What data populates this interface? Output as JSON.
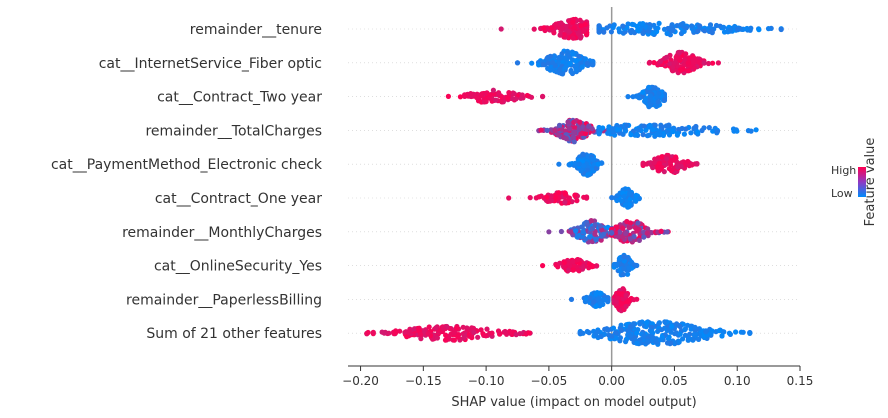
{
  "chart_data": {
    "type": "scatter",
    "subtype": "shap-beeswarm",
    "xlabel": "SHAP value (impact on model output)",
    "xlim": [
      -0.21,
      0.15
    ],
    "xticks": [
      -0.2,
      -0.15,
      -0.1,
      -0.05,
      0.0,
      0.05,
      0.1,
      0.15
    ],
    "xtick_labels": [
      "−0.20",
      "−0.15",
      "−0.10",
      "−0.05",
      "0.00",
      "0.05",
      "0.10",
      "0.15"
    ],
    "colorbar": {
      "label": "Feature value",
      "high": "High",
      "low": "Low",
      "high_color": "#ff0052",
      "low_color": "#008bfb"
    },
    "features": [
      {
        "name": "remainder__tenure",
        "clusters": [
          {
            "min": -0.088,
            "max": -0.02,
            "center": -0.03,
            "spread": 0.012,
            "color": "high",
            "count": 130,
            "width": 0.85
          },
          {
            "min": -0.01,
            "max": 0.135,
            "center": 0.04,
            "spread": 0.045,
            "color": "low",
            "count": 170,
            "width": 0.5
          }
        ]
      },
      {
        "name": "cat__InternetService_Fiber optic",
        "clusters": [
          {
            "min": -0.075,
            "max": -0.015,
            "center": -0.037,
            "spread": 0.012,
            "color": "low",
            "count": 150,
            "width": 1.0
          },
          {
            "min": 0.03,
            "max": 0.085,
            "center": 0.055,
            "spread": 0.01,
            "color": "high",
            "count": 130,
            "width": 0.95
          }
        ]
      },
      {
        "name": "cat__Contract_Two year",
        "clusters": [
          {
            "min": -0.13,
            "max": -0.055,
            "center": -0.095,
            "spread": 0.015,
            "color": "high",
            "count": 90,
            "width": 0.55
          },
          {
            "min": 0.013,
            "max": 0.042,
            "center": 0.033,
            "spread": 0.006,
            "color": "low",
            "count": 110,
            "width": 1.0
          }
        ]
      },
      {
        "name": "remainder__TotalCharges",
        "clusters": [
          {
            "min": -0.058,
            "max": 0.0,
            "center": -0.03,
            "spread": 0.01,
            "color": "mix",
            "count": 140,
            "width": 0.95
          },
          {
            "min": -0.01,
            "max": 0.115,
            "center": 0.03,
            "spread": 0.04,
            "color": "low",
            "count": 150,
            "width": 0.5
          }
        ]
      },
      {
        "name": "cat__PaymentMethod_Electronic check",
        "clusters": [
          {
            "min": -0.042,
            "max": -0.008,
            "center": -0.02,
            "spread": 0.006,
            "color": "low",
            "count": 110,
            "width": 0.95
          },
          {
            "min": 0.025,
            "max": 0.068,
            "center": 0.045,
            "spread": 0.01,
            "color": "high",
            "count": 100,
            "width": 0.8
          }
        ]
      },
      {
        "name": "cat__Contract_One year",
        "clusters": [
          {
            "min": -0.082,
            "max": -0.02,
            "center": -0.04,
            "spread": 0.012,
            "color": "high",
            "count": 60,
            "width": 0.45
          },
          {
            "min": 0.0,
            "max": 0.022,
            "center": 0.012,
            "spread": 0.005,
            "color": "low",
            "count": 60,
            "width": 0.8
          }
        ]
      },
      {
        "name": "remainder__MonthlyCharges",
        "clusters": [
          {
            "min": -0.05,
            "max": 0.0,
            "center": -0.015,
            "spread": 0.01,
            "color": "mix-low",
            "count": 110,
            "width": 0.95
          },
          {
            "min": 0.0,
            "max": 0.045,
            "center": 0.015,
            "spread": 0.01,
            "color": "mix-high",
            "count": 110,
            "width": 0.95
          }
        ]
      },
      {
        "name": "cat__OnlineSecurity_Yes",
        "clusters": [
          {
            "min": -0.055,
            "max": -0.012,
            "center": -0.03,
            "spread": 0.008,
            "color": "high",
            "count": 80,
            "width": 0.55
          },
          {
            "min": 0.002,
            "max": 0.02,
            "center": 0.01,
            "spread": 0.004,
            "color": "low",
            "count": 70,
            "width": 0.95
          }
        ]
      },
      {
        "name": "remainder__PaperlessBilling",
        "clusters": [
          {
            "min": -0.032,
            "max": -0.003,
            "center": -0.012,
            "spread": 0.006,
            "color": "low",
            "count": 70,
            "width": 0.6
          },
          {
            "min": 0.002,
            "max": 0.02,
            "center": 0.008,
            "spread": 0.004,
            "color": "high",
            "count": 70,
            "width": 0.95
          }
        ]
      },
      {
        "name": "Sum of 21 other features",
        "clusters": [
          {
            "min": -0.195,
            "max": -0.065,
            "center": -0.13,
            "spread": 0.03,
            "color": "high",
            "count": 160,
            "width": 0.6
          },
          {
            "min": -0.025,
            "max": 0.11,
            "center": 0.035,
            "spread": 0.032,
            "color": "low",
            "count": 260,
            "width": 1.0
          }
        ]
      }
    ]
  }
}
